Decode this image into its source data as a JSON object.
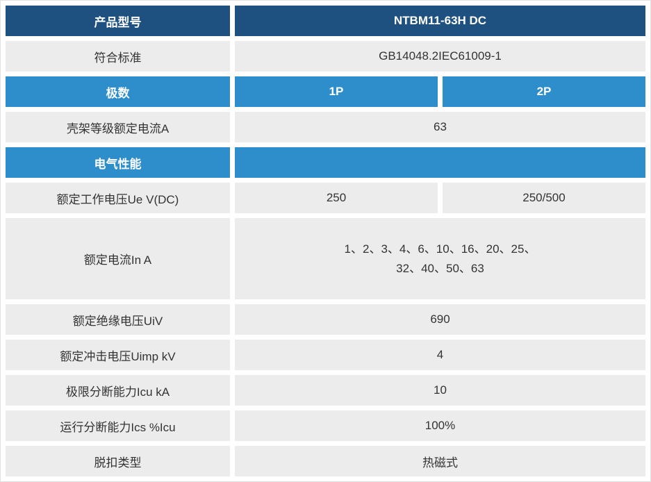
{
  "table": {
    "title_row": {
      "label": "产品型号",
      "value": "NTBM11-63H DC"
    },
    "rows": [
      {
        "label": "符合标准",
        "value": "GB14048.2IEC61009-1"
      },
      {
        "label": "极数",
        "values": [
          "1P",
          "2P"
        ]
      },
      {
        "label": "壳架等级额定电流A",
        "value": "63"
      },
      {
        "label": "电气性能",
        "value": ""
      },
      {
        "label": "额定工作电压Ue V(DC)",
        "values": [
          "250",
          "250/500"
        ]
      },
      {
        "label": "额定电流In A",
        "value_lines": [
          "1、2、3、4、6、10、16、20、25、",
          "32、40、50、63"
        ]
      },
      {
        "label": "额定绝缘电压UiV",
        "value": "690"
      },
      {
        "label": "额定冲击电压Uimp kV",
        "value": "4"
      },
      {
        "label": "极限分断能力Icu kA",
        "value": "10"
      },
      {
        "label": "运行分断能力Ics %Icu",
        "value": "100%"
      },
      {
        "label": "脱扣类型",
        "value": "热磁式"
      }
    ],
    "colors": {
      "header_dark_blue": "#1F5180",
      "header_light_blue": "#2D8ECB",
      "row_gray": "#ECECEC",
      "text_dark": "#333333",
      "text_on_headers": "#FFFFFF"
    }
  }
}
